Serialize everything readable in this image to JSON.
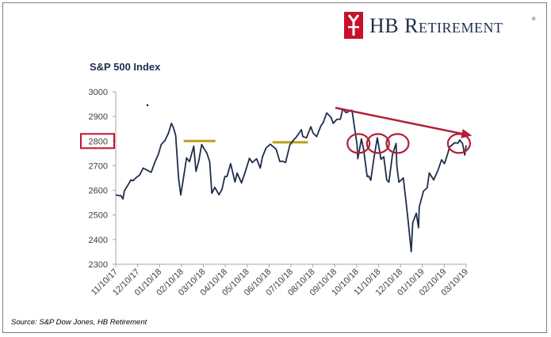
{
  "brand": {
    "name": "HB Retirement",
    "display": "HB Retirement",
    "registered_mark": "®",
    "logo_color": "#c8102e",
    "text_color": "#1f2d4d"
  },
  "source": "Source: S&P Dow Jones, HB Retirement",
  "chart_data": {
    "type": "line",
    "title": "S&P 500 Index",
    "xlabel": "",
    "ylabel": "",
    "ylim": [
      2300,
      3000
    ],
    "yticks": [
      2300,
      2400,
      2500,
      2600,
      2700,
      2800,
      2900,
      3000
    ],
    "highlighted_ytick": 2800,
    "x_tick_labels": [
      "11/10/17",
      "12/10/17",
      "01/10/18",
      "02/10/18",
      "03/10/18",
      "04/10/18",
      "05/10/18",
      "06/10/18",
      "07/10/18",
      "08/10/18",
      "09/10/18",
      "10/10/18",
      "11/10/18",
      "12/10/18",
      "01/10/19",
      "02/10/19",
      "03/10/19"
    ],
    "xlim": [
      "2017-11-10",
      "2019-03-10"
    ],
    "line_color": "#1f2d4d",
    "series": [
      {
        "values": [
          [
            "2017-11-10",
            2582
          ],
          [
            "2017-11-14",
            2578
          ],
          [
            "2017-11-17",
            2579
          ],
          [
            "2017-11-20",
            2565
          ],
          [
            "2017-11-22",
            2598
          ],
          [
            "2017-11-28",
            2627
          ],
          [
            "2017-12-01",
            2642
          ],
          [
            "2017-12-04",
            2639
          ],
          [
            "2017-12-08",
            2651
          ],
          [
            "2017-12-13",
            2662
          ],
          [
            "2017-12-18",
            2690
          ],
          [
            "2017-12-22",
            2684
          ],
          [
            "2017-12-29",
            2673
          ],
          [
            "2018-01-03",
            2713
          ],
          [
            "2018-01-08",
            2747
          ],
          [
            "2018-01-12",
            2786
          ],
          [
            "2018-01-17",
            2802
          ],
          [
            "2018-01-22",
            2832
          ],
          [
            "2018-01-26",
            2872
          ],
          [
            "2018-01-29",
            2853
          ],
          [
            "2018-02-01",
            2822
          ],
          [
            "2018-02-05",
            2648
          ],
          [
            "2018-02-08",
            2581
          ],
          [
            "2018-02-12",
            2656
          ],
          [
            "2018-02-16",
            2732
          ],
          [
            "2018-02-20",
            2716
          ],
          [
            "2018-02-26",
            2779
          ],
          [
            "2018-03-01",
            2677
          ],
          [
            "2018-03-05",
            2720
          ],
          [
            "2018-03-09",
            2786
          ],
          [
            "2018-03-13",
            2765
          ],
          [
            "2018-03-16",
            2752
          ],
          [
            "2018-03-20",
            2716
          ],
          [
            "2018-03-23",
            2588
          ],
          [
            "2018-03-27",
            2612
          ],
          [
            "2018-04-02",
            2582
          ],
          [
            "2018-04-06",
            2604
          ],
          [
            "2018-04-10",
            2656
          ],
          [
            "2018-04-13",
            2656
          ],
          [
            "2018-04-18",
            2708
          ],
          [
            "2018-04-24",
            2634
          ],
          [
            "2018-04-27",
            2670
          ],
          [
            "2018-05-03",
            2630
          ],
          [
            "2018-05-08",
            2672
          ],
          [
            "2018-05-14",
            2730
          ],
          [
            "2018-05-18",
            2713
          ],
          [
            "2018-05-24",
            2728
          ],
          [
            "2018-05-29",
            2690
          ],
          [
            "2018-06-01",
            2735
          ],
          [
            "2018-06-06",
            2772
          ],
          [
            "2018-06-12",
            2787
          ],
          [
            "2018-06-15",
            2779
          ],
          [
            "2018-06-20",
            2767
          ],
          [
            "2018-06-25",
            2717
          ],
          [
            "2018-06-29",
            2718
          ],
          [
            "2018-07-03",
            2713
          ],
          [
            "2018-07-09",
            2784
          ],
          [
            "2018-07-13",
            2801
          ],
          [
            "2018-07-18",
            2816
          ],
          [
            "2018-07-25",
            2846
          ],
          [
            "2018-07-27",
            2818
          ],
          [
            "2018-08-01",
            2813
          ],
          [
            "2018-08-07",
            2858
          ],
          [
            "2018-08-10",
            2833
          ],
          [
            "2018-08-15",
            2818
          ],
          [
            "2018-08-21",
            2862
          ],
          [
            "2018-08-24",
            2874
          ],
          [
            "2018-08-29",
            2914
          ],
          [
            "2018-09-04",
            2896
          ],
          [
            "2018-09-07",
            2872
          ],
          [
            "2018-09-12",
            2888
          ],
          [
            "2018-09-17",
            2889
          ],
          [
            "2018-09-20",
            2930
          ],
          [
            "2018-09-25",
            2915
          ],
          [
            "2018-10-01",
            2924
          ],
          [
            "2018-10-03",
            2925
          ],
          [
            "2018-10-05",
            2885
          ],
          [
            "2018-10-10",
            2785
          ],
          [
            "2018-10-11",
            2728
          ],
          [
            "2018-10-16",
            2809
          ],
          [
            "2018-10-19",
            2767
          ],
          [
            "2018-10-24",
            2656
          ],
          [
            "2018-10-26",
            2658
          ],
          [
            "2018-10-29",
            2641
          ],
          [
            "2018-11-02",
            2723
          ],
          [
            "2018-11-07",
            2813
          ],
          [
            "2018-11-09",
            2781
          ],
          [
            "2018-11-12",
            2726
          ],
          [
            "2018-11-16",
            2736
          ],
          [
            "2018-11-20",
            2642
          ],
          [
            "2018-11-23",
            2633
          ],
          [
            "2018-11-28",
            2744
          ],
          [
            "2018-12-03",
            2790
          ],
          [
            "2018-12-04",
            2700
          ],
          [
            "2018-12-07",
            2633
          ],
          [
            "2018-12-13",
            2650
          ],
          [
            "2018-12-17",
            2546
          ],
          [
            "2018-12-20",
            2467
          ],
          [
            "2018-12-24",
            2351
          ],
          [
            "2018-12-26",
            2468
          ],
          [
            "2018-12-31",
            2507
          ],
          [
            "2019-01-03",
            2448
          ],
          [
            "2019-01-04",
            2532
          ],
          [
            "2019-01-10",
            2597
          ],
          [
            "2019-01-15",
            2610
          ],
          [
            "2019-01-18",
            2671
          ],
          [
            "2019-01-24",
            2642
          ],
          [
            "2019-01-30",
            2682
          ],
          [
            "2019-02-04",
            2724
          ],
          [
            "2019-02-08",
            2708
          ],
          [
            "2019-02-13",
            2754
          ],
          [
            "2019-02-15",
            2776
          ],
          [
            "2019-02-22",
            2793
          ],
          [
            "2019-02-27",
            2792
          ],
          [
            "2019-03-01",
            2804
          ],
          [
            "2019-03-05",
            2790
          ],
          [
            "2019-03-08",
            2743
          ],
          [
            "2019-03-10",
            2783
          ]
        ]
      }
    ],
    "reference_lines": [
      {
        "y": 2800,
        "from": "2018-02-12",
        "to": "2018-03-28",
        "color": "#b8a11a"
      },
      {
        "y": 2795,
        "from": "2018-06-15",
        "to": "2018-08-03",
        "color": "#b8a11a"
      }
    ],
    "highlight_circles": [
      {
        "x": "2018-10-12",
        "y": 2790
      },
      {
        "x": "2018-11-08",
        "y": 2790
      },
      {
        "x": "2018-12-05",
        "y": 2790
      },
      {
        "x": "2019-02-28",
        "y": 2790
      }
    ],
    "trend_arrow": {
      "from": {
        "x": "2018-09-10",
        "y": 2935
      },
      "to": {
        "x": "2019-03-18",
        "y": 2822
      },
      "color": "#b0203a"
    },
    "grid": false,
    "legend": "none"
  }
}
